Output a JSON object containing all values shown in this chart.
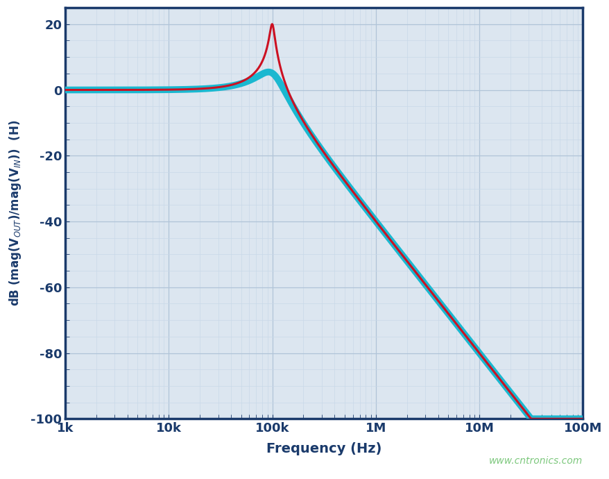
{
  "xlabel": "Frequency (Hz)",
  "ylabel_latex": "dB (mag(V$_{OUT}$)/mag(V$_{IN}$))  (H)",
  "xtick_labels": [
    "1k",
    "10k",
    "100k",
    "1M",
    "10M",
    "100M"
  ],
  "xtick_vals": [
    1000,
    10000,
    100000,
    1000000,
    10000000,
    100000000
  ],
  "yticks": [
    20,
    0,
    -20,
    -40,
    -60,
    -80,
    -100
  ],
  "ylim": [
    -100,
    25
  ],
  "bg_color": "#dce6f0",
  "grid_major_color": "#b0c4d8",
  "grid_minor_color": "#c8d8e8",
  "spine_color": "#1a3a6b",
  "label_color": "#1a3a6b",
  "watermark": "www.cntronics.com",
  "watermark_color": "#7dc87d",
  "cyan_color": "#1ab8d0",
  "red_color": "#cc1122",
  "cyan_lw": 7,
  "red_lw": 2.2,
  "f0": 100000,
  "Q_red": 10.0,
  "Q_cyan": 1.8,
  "f0_cyan": 100000
}
